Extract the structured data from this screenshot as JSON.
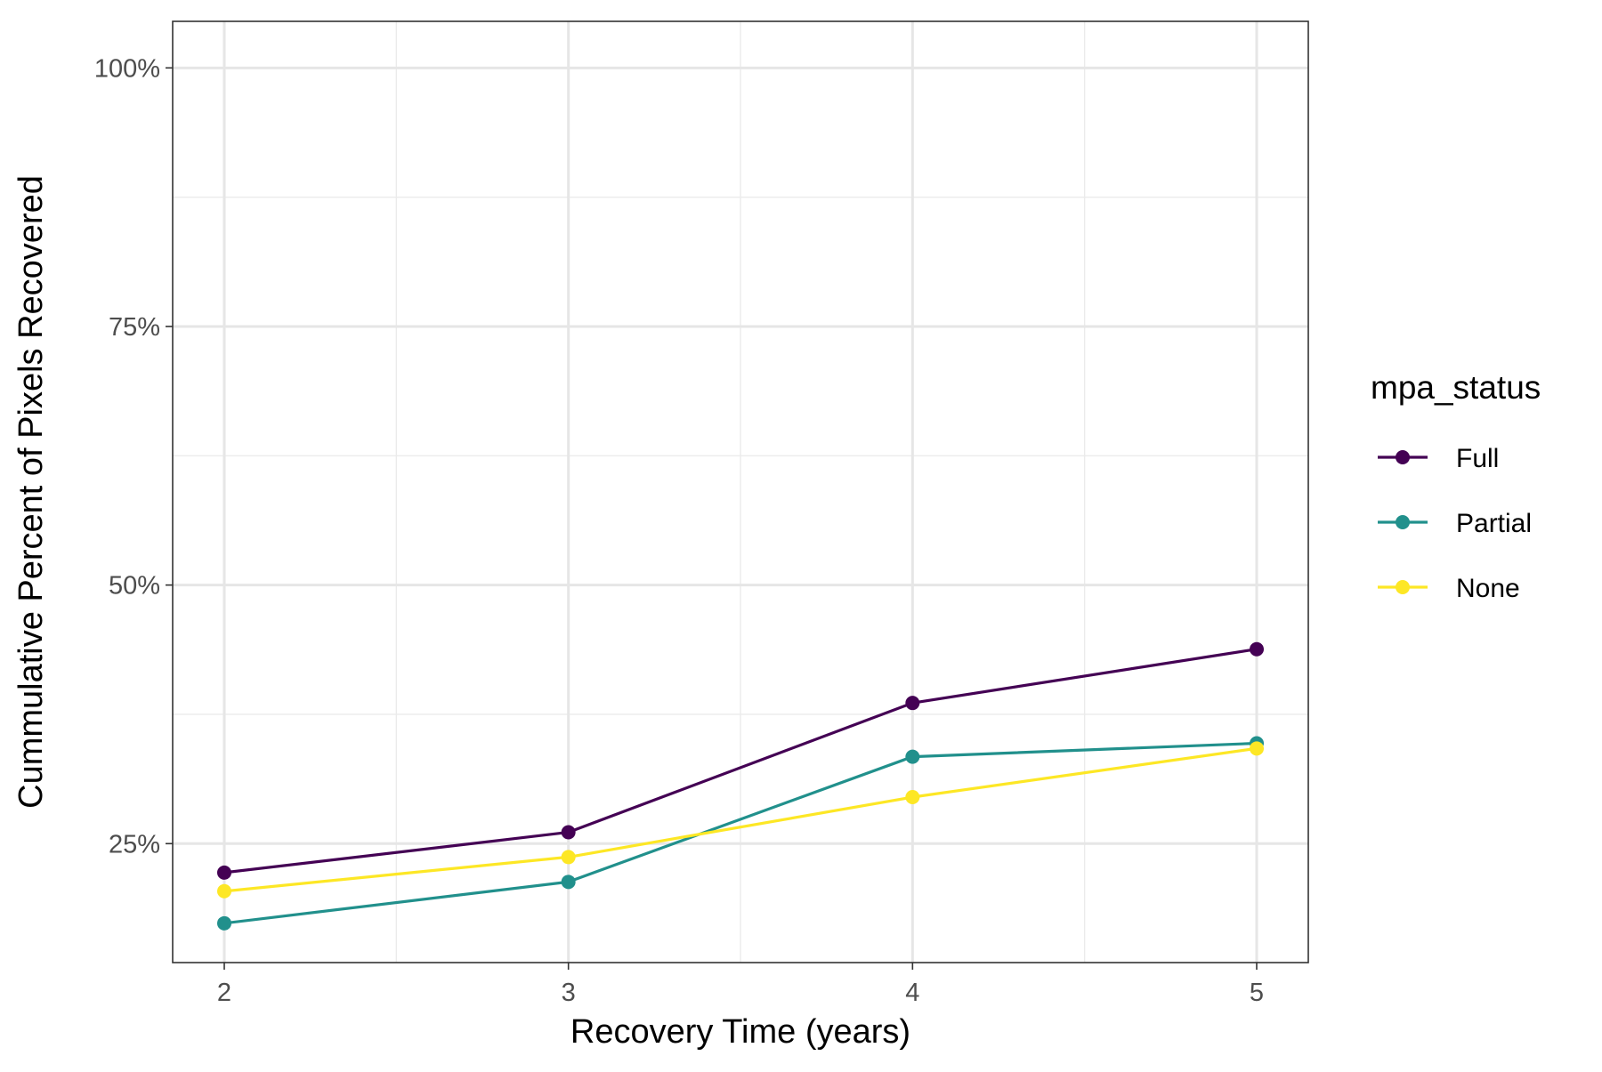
{
  "chart_data": {
    "type": "line",
    "title": "",
    "xlabel": "Recovery Time (years)",
    "ylabel": "Cummulative Percent of Pixels Recovered",
    "x": [
      2,
      3,
      4,
      5
    ],
    "xlim": [
      1.85,
      5.15
    ],
    "ylim": [
      13.5,
      104.5
    ],
    "x_ticks": [
      2,
      3,
      4,
      5
    ],
    "x_tick_labels": [
      "2",
      "3",
      "4",
      "5"
    ],
    "y_ticks": [
      25,
      50,
      75,
      100
    ],
    "y_tick_labels": [
      "25%",
      "50%",
      "75%",
      "100%"
    ],
    "y_minor_ticks": [
      37.5,
      62.5,
      87.5
    ],
    "x_minor_ticks": [
      2.5,
      3.5,
      4.5
    ],
    "grid": true,
    "legend": {
      "title": "mpa_status",
      "position": "right"
    },
    "series": [
      {
        "name": "Full",
        "color": "#440154",
        "values": [
          22.2,
          26.1,
          38.6,
          43.8
        ]
      },
      {
        "name": "Partial",
        "color": "#21908C",
        "values": [
          17.3,
          21.3,
          33.4,
          34.7
        ]
      },
      {
        "name": "None",
        "color": "#FDE725",
        "values": [
          20.4,
          23.7,
          29.5,
          34.2
        ]
      }
    ]
  }
}
